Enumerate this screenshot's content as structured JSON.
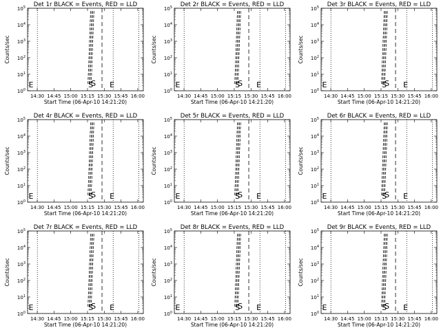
{
  "chart_data": [
    {
      "type": "line",
      "title": "Det 1r BLACK = Events, RED = LLD",
      "xlabel": "Start Time (06-Apr-10 14:21:20)",
      "ylabel": "Counts/sec",
      "x_ticks": [
        "14:30",
        "14:45",
        "15:00",
        "15:15",
        "15:30",
        "15:45",
        "16:00"
      ],
      "y_ticks": [
        "10^0",
        "10^1",
        "10^2",
        "10^3",
        "10^4",
        "10^5"
      ],
      "y_scale": "log",
      "ylim": [
        1,
        100000
      ],
      "xlim": [
        "14:21:20",
        "16:05"
      ],
      "series": [],
      "annotations": [
        "S",
        "E"
      ]
    },
    {
      "type": "line",
      "title": "Det 2r BLACK = Events, RED = LLD",
      "xlabel": "Start Time (06-Apr-10 14:21:20)",
      "ylabel": "Counts/sec",
      "x_ticks": [
        "14:30",
        "14:45",
        "15:00",
        "15:15",
        "15:30",
        "15:45",
        "16:00"
      ],
      "y_ticks": [
        "10^0",
        "10^1",
        "10^2",
        "10^3",
        "10^4",
        "10^5"
      ],
      "y_scale": "log",
      "ylim": [
        1,
        100000
      ],
      "xlim": [
        "14:21:20",
        "16:05"
      ],
      "series": [],
      "annotations": [
        "S",
        "E"
      ]
    },
    {
      "type": "line",
      "title": "Det 3r BLACK = Events, RED = LLD",
      "xlabel": "Start Time (06-Apr-10 14:21:20)",
      "ylabel": "Counts/sec",
      "x_ticks": [
        "14:30",
        "14:45",
        "15:00",
        "15:15",
        "15:30",
        "15:45",
        "16:00"
      ],
      "y_ticks": [
        "10^0",
        "10^1",
        "10^2",
        "10^3",
        "10^4",
        "10^5"
      ],
      "y_scale": "log",
      "ylim": [
        1,
        100000
      ],
      "xlim": [
        "14:21:20",
        "16:05"
      ],
      "series": [],
      "annotations": [
        "S",
        "E"
      ]
    },
    {
      "type": "line",
      "title": "Det 4r BLACK = Events, RED = LLD",
      "xlabel": "Start Time (06-Apr-10 14:21:20)",
      "ylabel": "Counts/sec",
      "x_ticks": [
        "14:30",
        "14:45",
        "15:00",
        "15:15",
        "15:30",
        "15:45",
        "16:00"
      ],
      "y_ticks": [
        "10^0",
        "10^1",
        "10^2",
        "10^3",
        "10^4",
        "10^5"
      ],
      "y_scale": "log",
      "ylim": [
        1,
        100000
      ],
      "xlim": [
        "14:21:20",
        "16:05"
      ],
      "series": [],
      "annotations": [
        "S",
        "E"
      ]
    },
    {
      "type": "line",
      "title": "Det 5r BLACK = Events, RED = LLD",
      "xlabel": "Start Time (06-Apr-10 14:21:20)",
      "ylabel": "Counts/sec",
      "x_ticks": [
        "14:30",
        "14:45",
        "15:00",
        "15:15",
        "15:30",
        "15:45",
        "16:00"
      ],
      "y_ticks": [
        "10^0",
        "10^1",
        "10^2",
        "10^3",
        "10^4",
        "10^5"
      ],
      "y_scale": "log",
      "ylim": [
        1,
        100000
      ],
      "xlim": [
        "14:21:20",
        "16:05"
      ],
      "series": [],
      "annotations": [
        "S",
        "E"
      ]
    },
    {
      "type": "line",
      "title": "Det 6r BLACK = Events, RED = LLD",
      "xlabel": "Start Time (06-Apr-10 14:21:20)",
      "ylabel": "Counts/sec",
      "x_ticks": [
        "14:30",
        "14:45",
        "15:00",
        "15:15",
        "15:30",
        "15:45",
        "16:00"
      ],
      "y_ticks": [
        "10^0",
        "10^1",
        "10^2",
        "10^3",
        "10^4",
        "10^5"
      ],
      "y_scale": "log",
      "ylim": [
        1,
        100000
      ],
      "xlim": [
        "14:21:20",
        "16:05"
      ],
      "series": [],
      "annotations": [
        "S",
        "E"
      ]
    },
    {
      "type": "line",
      "title": "Det 7r BLACK = Events, RED = LLD",
      "xlabel": "Start Time (06-Apr-10 14:21:20)",
      "ylabel": "Counts/sec",
      "x_ticks": [
        "14:30",
        "14:45",
        "15:00",
        "15:15",
        "15:30",
        "15:45",
        "16:00"
      ],
      "y_ticks": [
        "10^0",
        "10^1",
        "10^2",
        "10^3",
        "10^4",
        "10^5"
      ],
      "y_scale": "log",
      "ylim": [
        1,
        100000
      ],
      "xlim": [
        "14:21:20",
        "16:05"
      ],
      "series": [],
      "annotations": [
        "S",
        "E"
      ]
    },
    {
      "type": "line",
      "title": "Det 8r BLACK = Events, RED = LLD",
      "xlabel": "Start Time (06-Apr-10 14:21:20)",
      "ylabel": "Counts/sec",
      "x_ticks": [
        "14:30",
        "14:45",
        "15:00",
        "15:15",
        "15:30",
        "15:45",
        "16:00"
      ],
      "y_ticks": [
        "10^0",
        "10^1",
        "10^2",
        "10^3",
        "10^4",
        "10^5"
      ],
      "y_scale": "log",
      "ylim": [
        1,
        100000
      ],
      "xlim": [
        "14:21:20",
        "16:05"
      ],
      "series": [],
      "annotations": [
        "S",
        "E"
      ]
    },
    {
      "type": "line",
      "title": "Det 9r BLACK = Events, RED = LLD",
      "xlabel": "Start Time (06-Apr-10 14:21:20)",
      "ylabel": "Counts/sec",
      "x_ticks": [
        "14:30",
        "14:45",
        "15:00",
        "15:15",
        "15:30",
        "15:45",
        "16:00"
      ],
      "y_ticks": [
        "10^0",
        "10^1",
        "10^2",
        "10^3",
        "10^4",
        "10^5"
      ],
      "y_scale": "log",
      "ylim": [
        1,
        100000
      ],
      "xlim": [
        "14:21:20",
        "16:05"
      ],
      "series": [],
      "annotations": [
        "S",
        "E"
      ]
    }
  ]
}
